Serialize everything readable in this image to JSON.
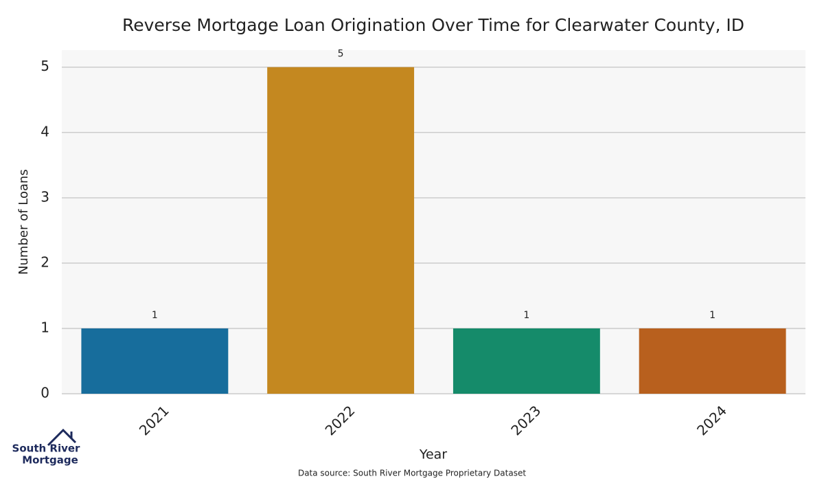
{
  "chart_data": {
    "type": "bar",
    "title": "Reverse Mortgage Loan Origination Over Time for Clearwater County, ID",
    "x_label": "Year",
    "y_label": "Number of Loans",
    "categories": [
      "2021",
      "2022",
      "2023",
      "2024"
    ],
    "values": [
      1,
      5,
      1,
      1
    ],
    "colors": [
      "#176d9c",
      "#c48820",
      "#158b6a",
      "#b8601e"
    ],
    "ylim": [
      0,
      5.26
    ],
    "yticks": [
      0,
      1,
      2,
      3,
      4,
      5
    ],
    "grid": true,
    "source": "Data source: South River Mortgage Proprietary Dataset"
  },
  "logo": {
    "line1": "South River",
    "line2": "Mortgage"
  }
}
